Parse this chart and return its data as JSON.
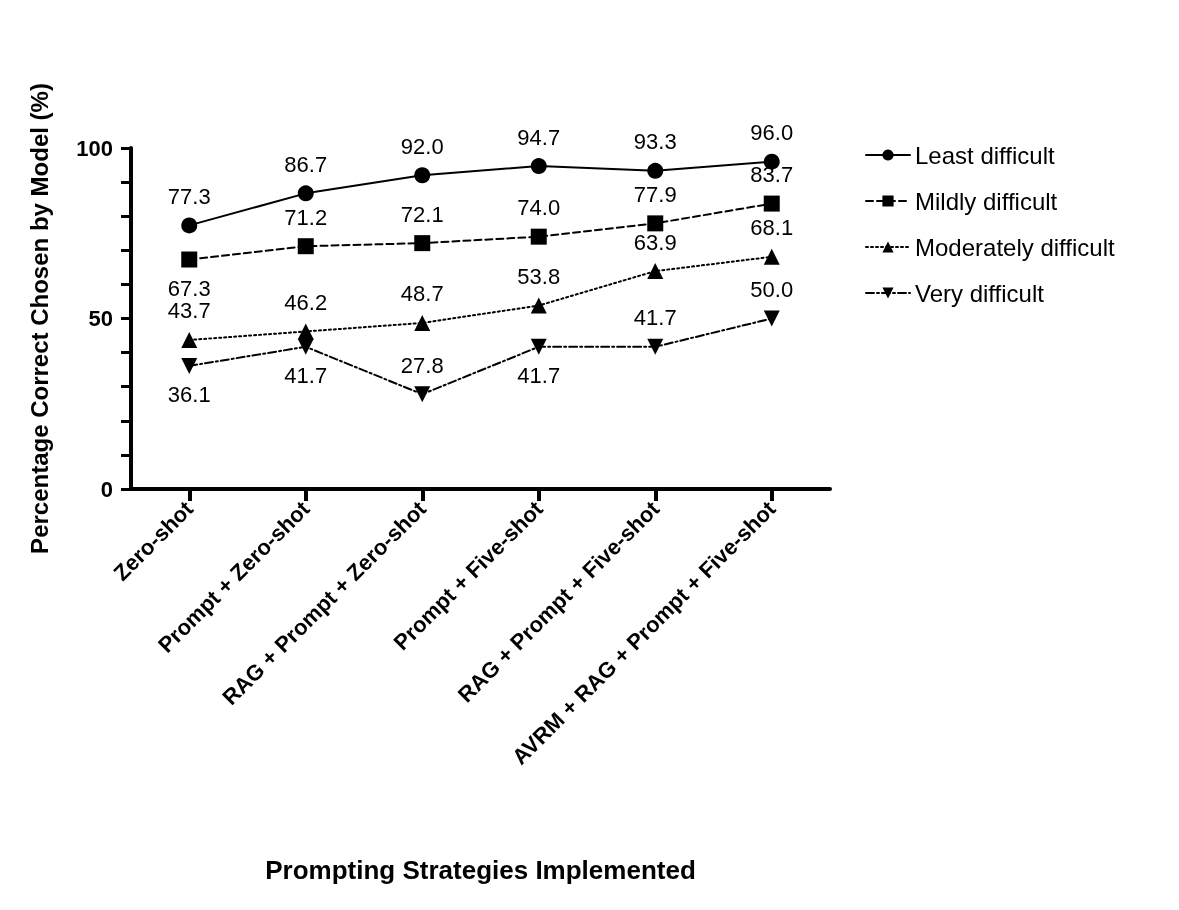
{
  "chart_data": {
    "type": "line",
    "xlabel": "Prompting Strategies Implemented",
    "ylabel": "Percentage Correct Chosen by Model (%)",
    "categories": [
      "Zero-shot",
      "Prompt + Zero-shot",
      "RAG + Prompt + Zero-shot",
      "Prompt + Five-shot",
      "RAG + Prompt + Five-shot",
      "AVRM + RAG + Prompt + Five-shot"
    ],
    "series": [
      {
        "name": "Least difficult",
        "color": "#000000",
        "marker": "circle",
        "line_style": "solid",
        "values": [
          77.3,
          86.7,
          92.0,
          94.7,
          93.3,
          96.0
        ],
        "value_labels": [
          "77.3",
          "86.7",
          "92.0",
          "94.7",
          "93.3",
          "96.0"
        ]
      },
      {
        "name": "Mildly difficult",
        "color": "#000000",
        "marker": "square",
        "line_style": "dashed",
        "values": [
          67.3,
          71.2,
          72.1,
          74.0,
          77.9,
          83.7
        ],
        "value_labels": [
          "67.3",
          "71.2",
          "72.1",
          "74.0",
          "77.9",
          "83.7"
        ]
      },
      {
        "name": "Moderately difficult",
        "color": "#000000",
        "marker": "triangle",
        "line_style": "dotted",
        "values": [
          43.7,
          46.2,
          48.7,
          53.8,
          63.9,
          68.1
        ],
        "value_labels": [
          "43.7",
          "46.2",
          "48.7",
          "53.8",
          "63.9",
          "68.1"
        ]
      },
      {
        "name": "Very difficult",
        "color": "#000000",
        "marker": "triangle-down",
        "line_style": "dashdot",
        "values": [
          36.1,
          41.7,
          27.8,
          41.7,
          41.7,
          50.0
        ],
        "value_labels": [
          "36.1",
          "41.7",
          "27.8",
          "41.7",
          "41.7",
          "50.0"
        ]
      }
    ],
    "ylim": [
      0,
      100
    ],
    "yticks": [
      0,
      {
        "value": 10,
        "label": null
      },
      {
        "value": 20,
        "label": null
      },
      {
        "value": 30,
        "label": null
      },
      {
        "value": 40,
        "label": null
      },
      50,
      {
        "value": 60,
        "label": null
      },
      {
        "value": 70,
        "label": null
      },
      {
        "value": 80,
        "label": null
      },
      {
        "value": 90,
        "label": null
      },
      100
    ],
    "grid": false,
    "legend": "right"
  }
}
